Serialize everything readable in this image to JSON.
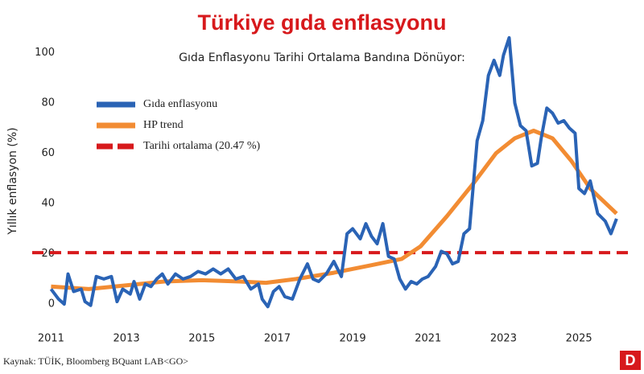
{
  "chart_data": {
    "type": "line",
    "title": "Türkiye gıda enflasyonu",
    "subtitle": "Gıda Enflasyonu Tarihi Ortalama Bandına Dönüyor:",
    "y_label": "Yıllık enflasyon (%)",
    "source": "Kaynak: TÜİK, Bloomberg BQuant LAB<GO>",
    "logo": "D",
    "xlim": [
      2010.5,
      2026.3
    ],
    "xticks": [
      2011,
      2013,
      2015,
      2017,
      2019,
      2021,
      2023,
      2025
    ],
    "ylim": [
      -7,
      105
    ],
    "yticks": [
      0,
      20,
      40,
      60,
      80,
      100
    ],
    "series": [
      {
        "name": "Gıda enflasyonu",
        "color": "#2a63b5",
        "x": [
          2011.0,
          2011.2,
          2011.35,
          2011.45,
          2011.6,
          2011.8,
          2011.9,
          2012.05,
          2012.2,
          2012.4,
          2012.6,
          2012.75,
          2012.9,
          2013.1,
          2013.2,
          2013.35,
          2013.5,
          2013.65,
          2013.8,
          2013.95,
          2014.1,
          2014.3,
          2014.5,
          2014.7,
          2014.9,
          2015.1,
          2015.3,
          2015.5,
          2015.7,
          2015.9,
          2016.1,
          2016.3,
          2016.5,
          2016.6,
          2016.75,
          2016.9,
          2017.05,
          2017.2,
          2017.4,
          2017.6,
          2017.8,
          2017.95,
          2018.1,
          2018.3,
          2018.5,
          2018.7,
          2018.85,
          2019.0,
          2019.2,
          2019.35,
          2019.5,
          2019.65,
          2019.8,
          2019.95,
          2020.1,
          2020.25,
          2020.4,
          2020.55,
          2020.7,
          2020.85,
          2021.0,
          2021.2,
          2021.35,
          2021.5,
          2021.65,
          2021.8,
          2021.95,
          2022.1,
          2022.3,
          2022.45,
          2022.6,
          2022.75,
          2022.9,
          2023.0,
          2023.15,
          2023.3,
          2023.45,
          2023.6,
          2023.75,
          2023.9,
          2024.0,
          2024.15,
          2024.3,
          2024.45,
          2024.6,
          2024.75,
          2024.9,
          2025.0,
          2025.15,
          2025.3,
          2025.5,
          2025.7,
          2025.85,
          2026.0
        ],
        "values": [
          6,
          2,
          0,
          12,
          5,
          6,
          1,
          -0.5,
          11,
          10,
          11,
          1,
          6,
          4,
          9,
          2,
          8,
          7,
          10,
          12,
          8,
          12,
          10,
          11,
          13,
          12,
          14,
          12,
          14,
          10,
          11,
          6,
          8,
          2,
          -1,
          5,
          7,
          3,
          2,
          10,
          16,
          10,
          9,
          12,
          17,
          11,
          28,
          30,
          26,
          32,
          27,
          24,
          32,
          19,
          18,
          10,
          6,
          9,
          8,
          10,
          11,
          15,
          21,
          20,
          16,
          17,
          28,
          30,
          65,
          73,
          91,
          97,
          91,
          99,
          106,
          80,
          71,
          69,
          55,
          56,
          66,
          78,
          76,
          72,
          73,
          70,
          68,
          46,
          44,
          49,
          36,
          33,
          28,
          34
        ]
      },
      {
        "name": "HP trend",
        "color": "#f28c33",
        "x": [
          2011,
          2012,
          2013,
          2014,
          2015,
          2016,
          2016.7,
          2017.5,
          2018.5,
          2019.5,
          2020.3,
          2020.8,
          2021.5,
          2022.2,
          2022.8,
          2023.3,
          2023.8,
          2024.3,
          2024.8,
          2025.3,
          2026.0
        ],
        "values": [
          7,
          6,
          7.5,
          9,
          9.5,
          9,
          8.5,
          10,
          12.5,
          15.5,
          18,
          23,
          35,
          48,
          60,
          66,
          69,
          66,
          57,
          46,
          36
        ]
      }
    ],
    "reference_line": {
      "name": "Tarihi ortalama (20.47 %)",
      "value": 20.47,
      "color": "#d7191c"
    }
  }
}
